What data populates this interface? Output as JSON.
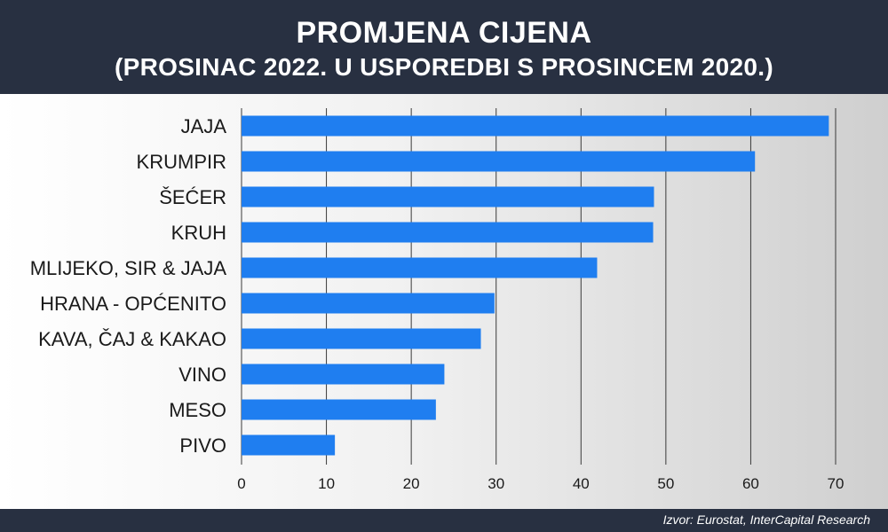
{
  "header": {
    "title": "PROMJENA CIJENA",
    "subtitle": "(PROSINAC 2022. U USPOREDBI S PROSINCEM 2020.)"
  },
  "footer": {
    "source": "Izvor: Eurostat, InterCapital Research"
  },
  "colors": {
    "bar": "#1f7ef0",
    "header_bg": "#283041",
    "grid": "#3a3a3a",
    "text": "#1a1a1a"
  },
  "chart_data": {
    "type": "bar",
    "orientation": "horizontal",
    "title": "PROMJENA CIJENA",
    "subtitle": "(PROSINAC 2022. U USPOREDBI S PROSINCEM 2020.)",
    "xlabel": "",
    "ylabel": "",
    "categories": [
      "JAJA",
      "KRUMPIR",
      "ŠEĆER",
      "KRUH",
      "MLIJEKO, SIR & JAJA",
      "HRANA - OPĆENITO",
      "KAVA, ČAJ & KAKAO",
      "VINO",
      "MESO",
      "PIVO"
    ],
    "values": [
      69.2,
      60.5,
      48.6,
      48.5,
      41.9,
      29.8,
      28.2,
      23.9,
      22.9,
      11.0
    ],
    "xlim": [
      0,
      70
    ],
    "ticks": [
      0,
      10,
      20,
      30,
      40,
      50,
      60,
      70
    ],
    "grid": true,
    "legend": "none"
  }
}
